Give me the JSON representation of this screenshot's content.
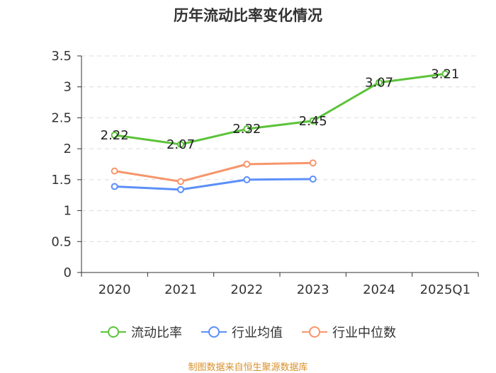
{
  "chart_data": {
    "type": "line",
    "title": "历年流动比率变化情况",
    "categories": [
      "2020",
      "2021",
      "2022",
      "2023",
      "2024",
      "2025Q1"
    ],
    "ylim": [
      0,
      3.5
    ],
    "yticks": [
      "0",
      "0.5",
      "1",
      "1.5",
      "2",
      "2.5",
      "3",
      "3.5"
    ],
    "grid": true,
    "legend_position": "bottom",
    "series": [
      {
        "name": "流动比率",
        "color": "#5cc33a",
        "values": [
          2.22,
          2.07,
          2.32,
          2.45,
          3.07,
          3.21
        ],
        "data_labels": [
          "2.22",
          "2.07",
          "2.32",
          "2.45",
          "3.07",
          "3.21"
        ]
      },
      {
        "name": "行业均值",
        "color": "#5b8ff9",
        "values": [
          1.39,
          1.34,
          1.5,
          1.51,
          null,
          null
        ]
      },
      {
        "name": "行业中位数",
        "color": "#f7956a",
        "values": [
          1.64,
          1.47,
          1.75,
          1.77,
          null,
          null
        ]
      }
    ]
  },
  "footer": {
    "source": "制图数据来自恒生聚源数据库"
  }
}
